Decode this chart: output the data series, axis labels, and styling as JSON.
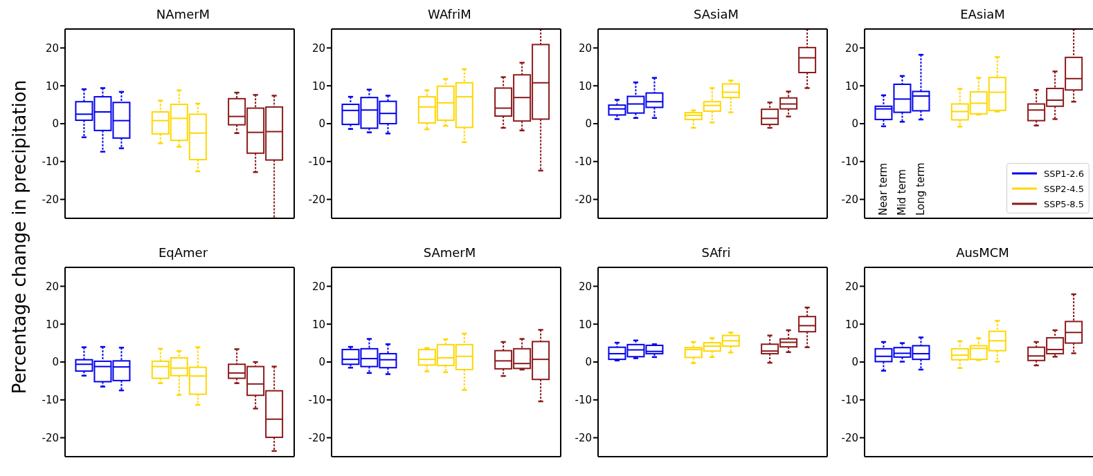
{
  "chart_data": [
    {
      "type": "box",
      "title": "NAmerM",
      "ylabel": "Percentage change in precipitation",
      "categories": [
        null,
        null,
        null
      ],
      "ylim": [
        -25,
        25
      ],
      "yticks": [
        -20,
        -10,
        0,
        10,
        20
      ],
      "tick_labels": "y",
      "series": [
        {
          "colors": [
            "#0000ee",
            "#ffd700",
            "#8b1a1a"
          ],
          "boxes": [
            {
              "low": -3.6,
              "q1": 0.9,
              "median": 2.5,
              "q3": 5.8,
              "high": 9.1
            },
            {
              "low": -5.2,
              "q1": -2.7,
              "median": 0.8,
              "q3": 3.1,
              "high": 6.1
            },
            {
              "low": -2.5,
              "q1": -0.3,
              "median": 1.9,
              "q3": 6.6,
              "high": 8.2
            }
          ]
        },
        {
          "colors": [
            "#0000ee",
            "#ffd700",
            "#8b1a1a"
          ],
          "boxes": [
            {
              "low": -7.4,
              "q1": -1.8,
              "median": 3.1,
              "q3": 7.1,
              "high": 9.4
            },
            {
              "low": -6.1,
              "q1": -4.4,
              "median": 1.4,
              "q3": 5.1,
              "high": 8.8
            },
            {
              "low": -12.8,
              "q1": -7.8,
              "median": -2.3,
              "q3": 4.1,
              "high": 7.6
            }
          ]
        },
        {
          "colors": [
            "#0000ee",
            "#ffd700",
            "#8b1a1a"
          ],
          "boxes": [
            {
              "low": -6.5,
              "q1": -3.8,
              "median": 0.8,
              "q3": 5.6,
              "high": 8.4
            },
            {
              "low": -12.6,
              "q1": -9.5,
              "median": -2.5,
              "q3": 2.5,
              "high": 5.3
            },
            {
              "low": -25,
              "q1": -9.6,
              "median": -2.1,
              "q3": 4.4,
              "high": 7.4
            }
          ]
        }
      ]
    },
    {
      "type": "box",
      "title": "WAfriM",
      "categories": [
        null,
        null,
        null
      ],
      "ylim": [
        -25,
        25
      ],
      "yticks": [
        -20,
        -10,
        0,
        10,
        20
      ],
      "tick_labels": "y",
      "series": [
        {
          "colors": [
            "#0000ee",
            "#ffd700",
            "#8b1a1a"
          ],
          "boxes": [
            {
              "low": -1.4,
              "q1": -0.2,
              "median": 3.5,
              "q3": 5.1,
              "high": 7.1
            },
            {
              "low": -1.5,
              "q1": 0.2,
              "median": 4.4,
              "q3": 7.1,
              "high": 8.8
            },
            {
              "low": -1.1,
              "q1": 2.0,
              "median": 4.1,
              "q3": 9.4,
              "high": 12.3
            }
          ]
        },
        {
          "colors": [
            "#0000ee",
            "#ffd700",
            "#8b1a1a"
          ],
          "boxes": [
            {
              "low": -2.3,
              "q1": -1.2,
              "median": 3.6,
              "q3": 6.9,
              "high": 9.0
            },
            {
              "low": -0.6,
              "q1": 0.9,
              "median": 5.5,
              "q3": 9.9,
              "high": 11.8
            },
            {
              "low": -1.8,
              "q1": 0.7,
              "median": 6.9,
              "q3": 12.9,
              "high": 16.1
            }
          ]
        },
        {
          "colors": [
            "#0000ee",
            "#ffd700",
            "#8b1a1a"
          ],
          "boxes": [
            {
              "low": -2.6,
              "q1": 0,
              "median": 2.7,
              "q3": 5.9,
              "high": 7.4
            },
            {
              "low": -4.9,
              "q1": -1.0,
              "median": 7.1,
              "q3": 10.8,
              "high": 14.4
            },
            {
              "low": -12.4,
              "q1": 1.2,
              "median": 10.8,
              "q3": 20.9,
              "high": 25
            }
          ]
        }
      ]
    },
    {
      "type": "box",
      "title": "SAsiaM",
      "categories": [
        null,
        null,
        null
      ],
      "ylim": [
        -25,
        25
      ],
      "yticks": [
        -20,
        -10,
        0,
        10,
        20
      ],
      "tick_labels": "y",
      "series": [
        {
          "colors": [
            "#0000ee",
            "#ffd700",
            "#8b1a1a"
          ],
          "boxes": [
            {
              "low": 1.2,
              "q1": 2.3,
              "median": 3.9,
              "q3": 4.9,
              "high": 6.3
            },
            {
              "low": -1.1,
              "q1": 1.1,
              "median": 2.2,
              "q3": 2.9,
              "high": 3.5
            },
            {
              "low": -1.1,
              "q1": -0.2,
              "median": 1.4,
              "q3": 3.8,
              "high": 5.6
            }
          ]
        },
        {
          "colors": [
            "#0000ee",
            "#ffd700",
            "#8b1a1a"
          ],
          "boxes": [
            {
              "low": 1.5,
              "q1": 2.8,
              "median": 5.2,
              "q3": 7.2,
              "high": 10.9
            },
            {
              "low": 0.3,
              "q1": 3.3,
              "median": 4.8,
              "q3": 5.8,
              "high": 9.4
            },
            {
              "low": 1.9,
              "q1": 3.9,
              "median": 5.2,
              "q3": 6.8,
              "high": 8.5
            }
          ]
        },
        {
          "colors": [
            "#0000ee",
            "#ffd700",
            "#8b1a1a"
          ],
          "boxes": [
            {
              "low": 1.5,
              "q1": 4.3,
              "median": 5.8,
              "q3": 8.1,
              "high": 12.1
            },
            {
              "low": 3.0,
              "q1": 6.9,
              "median": 8.3,
              "q3": 10.5,
              "high": 11.4
            },
            {
              "low": 9.4,
              "q1": 13.5,
              "median": 17.4,
              "q3": 20.1,
              "high": 25
            }
          ]
        }
      ]
    },
    {
      "type": "box",
      "title": "EAsiaM",
      "categories": [
        null,
        null,
        null
      ],
      "ylim": [
        -25,
        25
      ],
      "yticks": [
        -20,
        -10,
        0,
        10,
        20
      ],
      "tick_labels": "y",
      "annotations": [
        "Near term",
        "Mid term",
        "Long term",
        "SSP1-2.6",
        "SSP2-4.5",
        "SSP5-8.5"
      ],
      "series": [
        {
          "colors": [
            "#0000ee",
            "#ffd700",
            "#8b1a1a"
          ],
          "boxes": [
            {
              "low": -0.7,
              "q1": 1.1,
              "median": 3.9,
              "q3": 4.6,
              "high": 7.5
            },
            {
              "low": -0.8,
              "q1": 1.0,
              "median": 3.2,
              "q3": 5.2,
              "high": 9.2
            },
            {
              "low": -0.5,
              "q1": 0.8,
              "median": 3.6,
              "q3": 5.2,
              "high": 8.9
            }
          ]
        },
        {
          "colors": [
            "#0000ee",
            "#ffd700",
            "#8b1a1a"
          ],
          "boxes": [
            {
              "low": 0.5,
              "q1": 3.0,
              "median": 6.5,
              "q3": 10.4,
              "high": 12.6
            },
            {
              "low": 2.4,
              "q1": 2.6,
              "median": 5.4,
              "q3": 8.4,
              "high": 12.1
            },
            {
              "low": 1.2,
              "q1": 4.6,
              "median": 6.2,
              "q3": 9.3,
              "high": 13.8
            }
          ]
        },
        {
          "colors": [
            "#0000ee",
            "#ffd700",
            "#8b1a1a"
          ],
          "boxes": [
            {
              "low": 1.1,
              "q1": 3.4,
              "median": 7.3,
              "q3": 8.5,
              "high": 18.2
            },
            {
              "low": 3.2,
              "q1": 3.5,
              "median": 8.3,
              "q3": 12.2,
              "high": 17.6
            },
            {
              "low": 5.8,
              "q1": 8.9,
              "median": 11.9,
              "q3": 17.5,
              "high": 25
            }
          ]
        }
      ]
    },
    {
      "type": "box",
      "title": "EqAmer",
      "categories": [
        null,
        null,
        null
      ],
      "ylim": [
        -25,
        25
      ],
      "yticks": [
        -20,
        -10,
        0,
        10,
        20
      ],
      "tick_labels": "y",
      "series": [
        {
          "colors": [
            "#0000ee",
            "#ffd700",
            "#8b1a1a"
          ],
          "boxes": [
            {
              "low": -3.6,
              "q1": -2.4,
              "median": -0.6,
              "q3": 0.6,
              "high": 3.9
            },
            {
              "low": -5.6,
              "q1": -4.3,
              "median": -1.2,
              "q3": 0.2,
              "high": 3.5
            },
            {
              "low": -5.6,
              "q1": -4.3,
              "median": -2.9,
              "q3": -0.6,
              "high": 3.4
            }
          ]
        },
        {
          "colors": [
            "#0000ee",
            "#ffd700",
            "#8b1a1a"
          ],
          "boxes": [
            {
              "low": -6.5,
              "q1": -5.2,
              "median": -1.2,
              "q3": 0.2,
              "high": 4.0
            },
            {
              "low": -8.7,
              "q1": -3.6,
              "median": -1.6,
              "q3": 1.1,
              "high": 2.9
            },
            {
              "low": -12.3,
              "q1": -8.8,
              "median": -5.8,
              "q3": -1.2,
              "high": 0
            }
          ]
        },
        {
          "colors": [
            "#0000ee",
            "#ffd700",
            "#8b1a1a"
          ],
          "boxes": [
            {
              "low": -7.5,
              "q1": -4.9,
              "median": -1.3,
              "q3": 0.3,
              "high": 3.8
            },
            {
              "low": -11.3,
              "q1": -8.5,
              "median": -3.7,
              "q3": -1.4,
              "high": 3.9
            },
            {
              "low": -23.5,
              "q1": -19.9,
              "median": -15.1,
              "q3": -7.6,
              "high": -1.2
            }
          ]
        }
      ]
    },
    {
      "type": "box",
      "title": "SAmerM",
      "categories": [
        null,
        null,
        null
      ],
      "ylim": [
        -25,
        25
      ],
      "yticks": [
        -20,
        -10,
        0,
        10,
        20
      ],
      "tick_labels": "y",
      "series": [
        {
          "colors": [
            "#0000ee",
            "#ffd700",
            "#8b1a1a"
          ],
          "boxes": [
            {
              "low": -1.5,
              "q1": -0.6,
              "median": 0.7,
              "q3": 3.3,
              "high": 4.0
            },
            {
              "low": -2.5,
              "q1": -0.8,
              "median": 0.7,
              "q3": 3.3,
              "high": 3.7
            },
            {
              "low": -3.7,
              "q1": -1.8,
              "median": 0.3,
              "q3": 3.0,
              "high": 5.3
            }
          ]
        },
        {
          "colors": [
            "#0000ee",
            "#ffd700",
            "#8b1a1a"
          ],
          "boxes": [
            {
              "low": -2.9,
              "q1": -1.2,
              "median": 0.9,
              "q3": 3.5,
              "high": 6.1
            },
            {
              "low": -2.7,
              "q1": -0.9,
              "median": 1.1,
              "q3": 4.6,
              "high": 6.0
            },
            {
              "low": -2.0,
              "q1": -1.7,
              "median": -0.4,
              "q3": 3.5,
              "high": 6.1
            }
          ]
        },
        {
          "colors": [
            "#0000ee",
            "#ffd700",
            "#8b1a1a"
          ],
          "boxes": [
            {
              "low": -3.2,
              "q1": -1.5,
              "median": 0.6,
              "q3": 2.2,
              "high": 4.7
            },
            {
              "low": -7.4,
              "q1": -2.0,
              "median": 1.5,
              "q3": 4.6,
              "high": 7.5
            },
            {
              "low": -10.4,
              "q1": -4.6,
              "median": 0.7,
              "q3": 5.4,
              "high": 8.5
            }
          ]
        }
      ]
    },
    {
      "type": "box",
      "title": "SAfri",
      "categories": [
        null,
        null,
        null
      ],
      "ylim": [
        -25,
        25
      ],
      "yticks": [
        -20,
        -10,
        0,
        10,
        20
      ],
      "tick_labels": "y",
      "series": [
        {
          "colors": [
            "#0000ee",
            "#ffd700",
            "#8b1a1a"
          ],
          "boxes": [
            {
              "low": 0.4,
              "q1": 0.7,
              "median": 2.2,
              "q3": 3.9,
              "high": 5.1
            },
            {
              "low": -0.3,
              "q1": 1.2,
              "median": 3.3,
              "q3": 3.8,
              "high": 5.3
            },
            {
              "low": -0.2,
              "q1": 2.2,
              "median": 2.9,
              "q3": 4.7,
              "high": 7.0
            }
          ]
        },
        {
          "colors": [
            "#0000ee",
            "#ffd700",
            "#8b1a1a"
          ],
          "boxes": [
            {
              "low": 1.0,
              "q1": 1.4,
              "median": 3.2,
              "q3": 4.6,
              "high": 5.7
            },
            {
              "low": 1.3,
              "q1": 2.9,
              "median": 4.2,
              "q3": 5.1,
              "high": 6.3
            },
            {
              "low": 2.6,
              "q1": 4.0,
              "median": 5.2,
              "q3": 6.1,
              "high": 8.4
            }
          ]
        },
        {
          "colors": [
            "#0000ee",
            "#ffd700",
            "#8b1a1a"
          ],
          "boxes": [
            {
              "low": 1.3,
              "q1": 2.2,
              "median": 2.8,
              "q3": 4.4,
              "high": 4.7
            },
            {
              "low": 2.5,
              "q1": 4.2,
              "median": 5.6,
              "q3": 7.0,
              "high": 7.8
            },
            {
              "low": 3.9,
              "q1": 8.0,
              "median": 9.6,
              "q3": 12.0,
              "high": 14.4
            }
          ]
        }
      ]
    },
    {
      "type": "box",
      "title": "AusMCM",
      "categories": [
        null,
        null,
        null
      ],
      "ylim": [
        -25,
        25
      ],
      "yticks": [
        -20,
        -10,
        0,
        10,
        20
      ],
      "tick_labels": "y",
      "series": [
        {
          "colors": [
            "#0000ee",
            "#ffd700",
            "#8b1a1a"
          ],
          "boxes": [
            {
              "low": -2.3,
              "q1": 0.1,
              "median": 1.5,
              "q3": 3.5,
              "high": 5.3
            },
            {
              "low": -1.6,
              "q1": 0.6,
              "median": 1.8,
              "q3": 3.5,
              "high": 5.5
            },
            {
              "low": -0.9,
              "q1": 0.4,
              "median": 1.6,
              "q3": 3.9,
              "high": 5.3
            }
          ]
        },
        {
          "colors": [
            "#0000ee",
            "#ffd700",
            "#8b1a1a"
          ],
          "boxes": [
            {
              "low": 0.1,
              "q1": 1.3,
              "median": 2.3,
              "q3": 3.8,
              "high": 5.0
            },
            {
              "low": 0.5,
              "q1": 0.7,
              "median": 3.6,
              "q3": 4.3,
              "high": 6.3
            },
            {
              "low": 1.4,
              "q1": 2.2,
              "median": 3.3,
              "q3": 6.4,
              "high": 8.4
            }
          ]
        },
        {
          "colors": [
            "#0000ee",
            "#ffd700",
            "#8b1a1a"
          ],
          "boxes": [
            {
              "low": -2.0,
              "q1": 0.7,
              "median": 2.2,
              "q3": 4.3,
              "high": 6.5
            },
            {
              "low": 0.1,
              "q1": 3.0,
              "median": 5.6,
              "q3": 8.1,
              "high": 10.9
            },
            {
              "low": 2.3,
              "q1": 5.0,
              "median": 7.8,
              "q3": 10.7,
              "high": 17.9
            }
          ]
        }
      ]
    }
  ]
}
